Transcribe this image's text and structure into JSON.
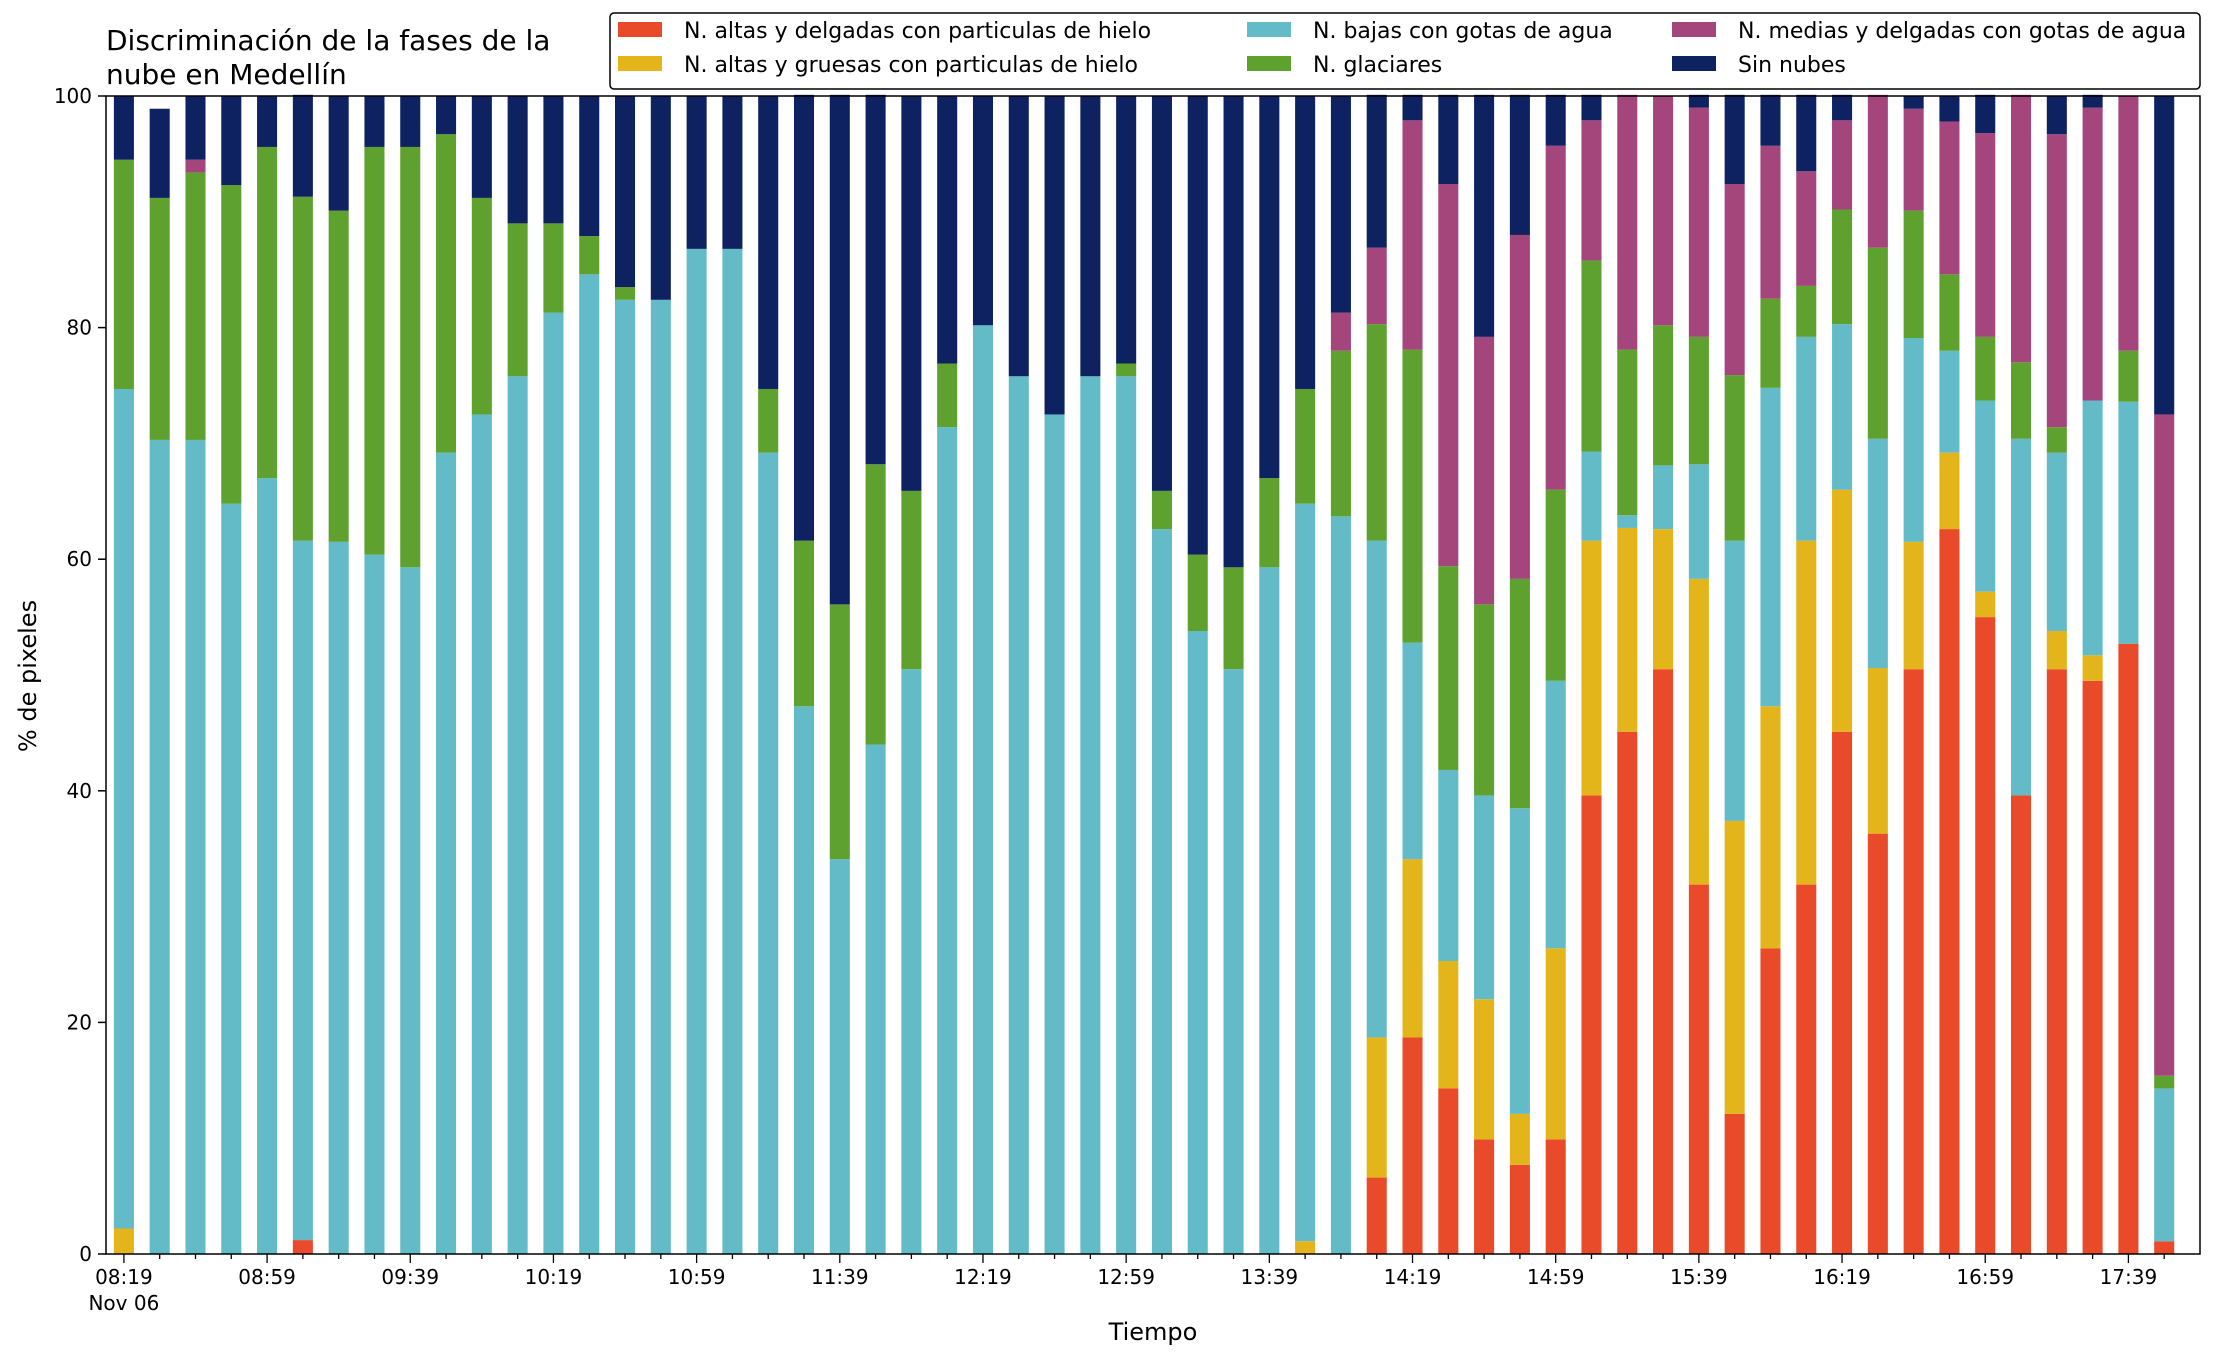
{
  "chart_data": {
    "type": "bar",
    "stacked": true,
    "title_lines": [
      "Discriminación de la fases de la",
      "nube en Medellín"
    ],
    "xlabel": "Tiempo",
    "ylabel": "% de pixeles",
    "ylim": [
      0,
      100
    ],
    "yticks": [
      0,
      20,
      40,
      60,
      80,
      100
    ],
    "xtick_labels": [
      {
        "index": 0,
        "label": "08:19",
        "sublabel": "Nov 06"
      },
      {
        "index": 4,
        "label": "08:59"
      },
      {
        "index": 8,
        "label": "09:39"
      },
      {
        "index": 12,
        "label": "10:19"
      },
      {
        "index": 16,
        "label": "10:59"
      },
      {
        "index": 20,
        "label": "11:39"
      },
      {
        "index": 24,
        "label": "12:19"
      },
      {
        "index": 28,
        "label": "12:59"
      },
      {
        "index": 32,
        "label": "13:39"
      },
      {
        "index": 36,
        "label": "14:19"
      },
      {
        "index": 40,
        "label": "14:59"
      },
      {
        "index": 44,
        "label": "15:39"
      },
      {
        "index": 48,
        "label": "16:19"
      },
      {
        "index": 52,
        "label": "16:59"
      },
      {
        "index": 56,
        "label": "17:39"
      }
    ],
    "legend_position": "top-right",
    "bar_count": 58,
    "series": [
      {
        "name": "N. altas y delgadas con particulas de hielo",
        "color": "#e94a2a",
        "values": [
          0,
          0,
          0,
          0,
          0,
          1.2,
          0,
          0,
          0,
          0,
          0,
          0,
          0,
          0,
          0,
          0,
          0,
          0,
          0,
          0,
          0,
          0,
          0,
          0,
          0,
          0,
          0,
          0,
          0,
          0,
          0,
          0,
          0,
          0,
          0,
          6.6,
          18.7,
          14.3,
          9.9,
          7.7,
          9.9,
          39.6,
          45.1,
          50.5,
          31.9,
          12.1,
          26.4,
          31.9,
          45.1,
          36.3,
          50.5,
          62.6,
          55.0,
          39.6,
          50.5,
          49.5,
          52.7,
          1.1
        ]
      },
      {
        "name": "N. altas y gruesas con particulas de hielo",
        "color": "#e3b51a",
        "values": [
          2.2,
          0,
          0,
          0,
          0,
          0,
          0,
          0,
          0,
          0,
          0,
          0,
          0,
          0,
          0,
          0,
          0,
          0,
          0,
          0,
          0,
          0,
          0,
          0,
          0,
          0,
          0,
          0,
          0,
          0,
          0,
          0,
          0,
          1.1,
          0,
          12.1,
          15.4,
          11.0,
          12.1,
          4.4,
          16.5,
          22.0,
          17.6,
          12.1,
          26.4,
          25.3,
          20.9,
          29.7,
          20.9,
          14.3,
          11.0,
          6.6,
          2.2,
          0,
          3.3,
          2.2,
          0,
          0
        ]
      },
      {
        "name": "N. bajas con gotas de agua",
        "color": "#63bbc7",
        "values": [
          72.5,
          70.3,
          70.3,
          64.8,
          67.0,
          60.4,
          61.5,
          60.4,
          59.3,
          69.2,
          72.5,
          75.8,
          81.3,
          84.6,
          82.4,
          82.4,
          86.8,
          86.8,
          69.2,
          47.3,
          34.1,
          44.0,
          50.5,
          71.4,
          80.2,
          75.8,
          72.5,
          75.8,
          75.8,
          62.6,
          53.8,
          50.5,
          59.3,
          63.7,
          63.7,
          42.9,
          18.7,
          16.5,
          17.6,
          26.4,
          23.1,
          7.7,
          1.1,
          5.5,
          9.9,
          24.2,
          27.5,
          17.6,
          14.3,
          19.8,
          17.6,
          8.8,
          16.5,
          30.8,
          15.4,
          22.0,
          20.9,
          13.2
        ]
      },
      {
        "name": "N. glaciares",
        "color": "#5ea12e",
        "values": [
          19.8,
          20.9,
          23.1,
          27.5,
          28.6,
          29.7,
          28.6,
          35.2,
          36.3,
          27.5,
          18.7,
          13.2,
          7.7,
          3.3,
          1.1,
          0,
          0,
          0,
          5.5,
          14.3,
          22.0,
          24.2,
          15.4,
          5.5,
          0,
          0,
          0,
          0,
          1.1,
          3.3,
          6.6,
          8.8,
          7.7,
          9.9,
          14.3,
          18.7,
          25.3,
          17.6,
          16.5,
          19.8,
          16.5,
          16.5,
          14.3,
          12.1,
          11.0,
          14.3,
          7.7,
          4.4,
          9.9,
          16.5,
          11.0,
          6.6,
          5.5,
          6.6,
          2.2,
          0,
          4.4,
          1.1
        ]
      },
      {
        "name": "N. medias y delgadas con gotas de agua",
        "color": "#a4457c",
        "values": [
          0,
          0,
          1.1,
          0,
          0,
          0,
          0,
          0,
          0,
          0,
          0,
          0,
          0,
          0,
          0,
          0,
          0,
          0,
          0,
          0,
          0,
          0,
          0,
          0,
          0,
          0,
          0,
          0,
          0,
          0,
          0,
          0,
          0,
          0,
          3.3,
          6.6,
          19.8,
          33.0,
          23.1,
          29.7,
          29.7,
          12.1,
          22.0,
          19.8,
          19.8,
          16.5,
          13.2,
          9.9,
          7.7,
          13.2,
          8.8,
          13.2,
          17.6,
          23.1,
          25.3,
          25.3,
          22.0,
          57.1
        ]
      },
      {
        "name": "Sin nubes",
        "color": "#0e2262",
        "values": [
          5.5,
          7.7,
          5.5,
          7.7,
          4.4,
          8.8,
          9.9,
          4.4,
          4.4,
          3.3,
          8.8,
          11.0,
          11.0,
          12.1,
          16.5,
          17.6,
          13.2,
          13.2,
          25.3,
          38.5,
          44.0,
          31.9,
          34.1,
          23.1,
          19.8,
          24.2,
          27.5,
          24.2,
          23.1,
          34.1,
          39.6,
          40.7,
          33.0,
          25.3,
          18.7,
          13.2,
          2.2,
          7.7,
          20.9,
          12.1,
          4.4,
          2.2,
          0,
          0,
          1.1,
          7.7,
          4.4,
          6.6,
          2.2,
          0,
          1.1,
          2.2,
          3.3,
          0,
          3.3,
          1.1,
          0,
          27.5
        ]
      }
    ]
  }
}
